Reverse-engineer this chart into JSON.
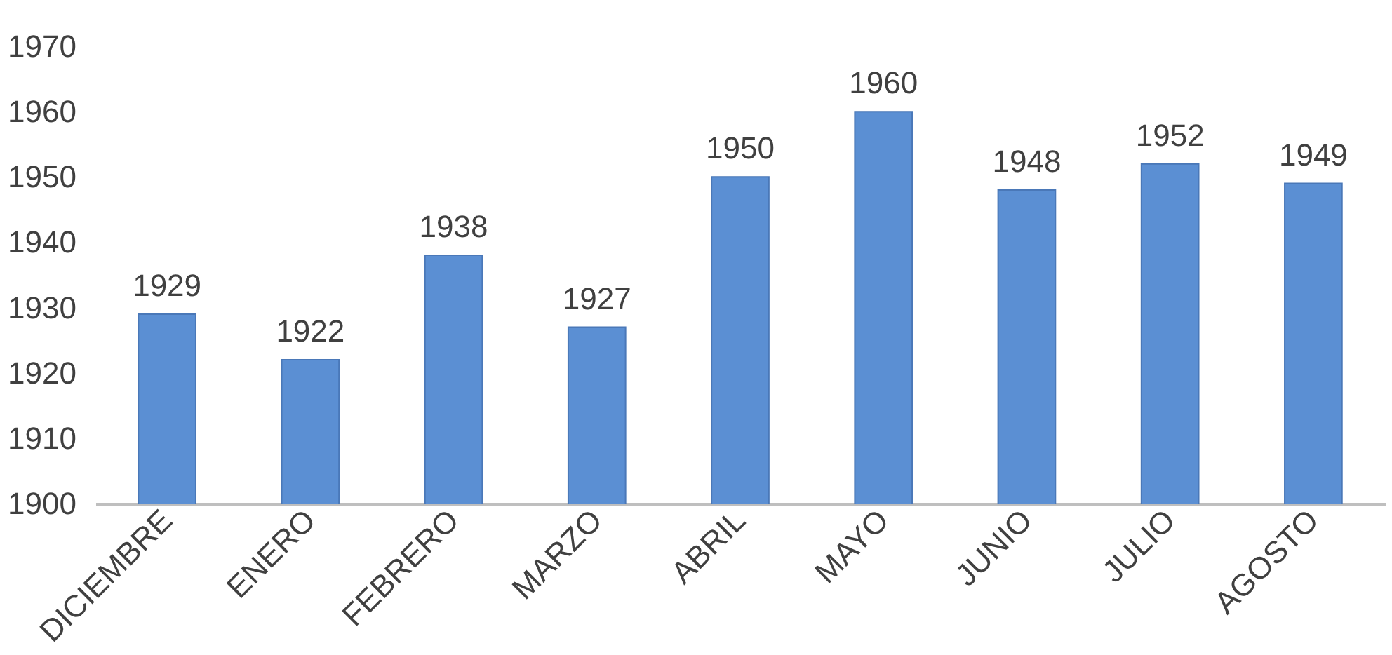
{
  "chart_data": {
    "type": "bar",
    "categories": [
      "DICIEMBRE",
      "ENERO",
      "FEBRERO",
      "MARZO",
      "ABRIL",
      "MAYO",
      "JUNIO",
      "JULIO",
      "AGOSTO"
    ],
    "values": [
      1929,
      1922,
      1938,
      1927,
      1950,
      1960,
      1948,
      1952,
      1949
    ],
    "color": "#5b8fd3",
    "ylim": [
      1900,
      1970
    ],
    "yticks": [
      1900,
      1910,
      1920,
      1930,
      1940,
      1950,
      1960,
      1970
    ],
    "grid": false,
    "data_labels": true
  }
}
